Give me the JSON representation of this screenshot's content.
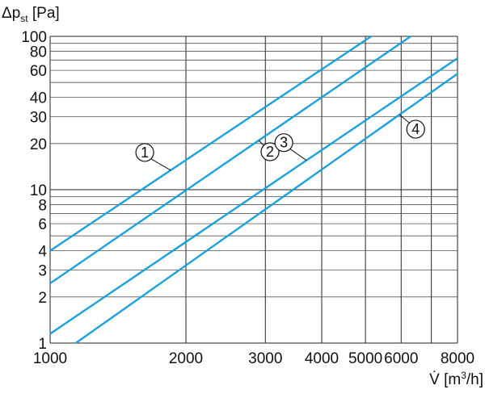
{
  "chart_data": {
    "type": "line",
    "xscale": "log",
    "yscale": "log",
    "xlim": [
      1000,
      8000
    ],
    "ylim": [
      1,
      100
    ],
    "grid": true,
    "xlabel": {
      "base": "V̇ [m",
      "sup": "3",
      "tail": "/h]"
    },
    "ylabel": {
      "base": "Δp",
      "sub": "st",
      "tail": " [Pa]"
    },
    "xticks": [
      1000,
      2000,
      3000,
      4000,
      5000,
      6000,
      8000
    ],
    "xtick_labels": [
      "1000",
      "2000",
      "3000",
      "4000",
      "5000",
      "6000",
      "8000"
    ],
    "xgrid": [
      1000,
      2000,
      3000,
      4000,
      5000,
      6000,
      7000,
      8000
    ],
    "yticks": [
      1,
      2,
      3,
      4,
      6,
      8,
      10,
      20,
      30,
      40,
      60,
      80,
      100
    ],
    "ytick_labels": [
      "1",
      "2",
      "3",
      "4",
      "6",
      "8",
      "10",
      "20",
      "30",
      "40",
      "60",
      "80",
      "100"
    ],
    "ygrid": [
      1,
      2,
      3,
      4,
      5,
      6,
      7,
      8,
      9,
      10,
      20,
      30,
      40,
      50,
      60,
      70,
      80,
      90,
      100
    ],
    "series": [
      {
        "label": "1",
        "points": [
          [
            1000,
            4
          ],
          [
            5150,
            100
          ]
        ],
        "label_at": [
          1850,
          12
        ],
        "marker": "circle-1"
      },
      {
        "label": "2",
        "points": [
          [
            1000,
            2.45
          ],
          [
            6300,
            100
          ]
        ],
        "label_at": [
          2900,
          15.5
        ],
        "marker": "circle-2"
      },
      {
        "label": "3",
        "points": [
          [
            1000,
            1.15
          ],
          [
            8000,
            72
          ]
        ],
        "label_at": [
          3700,
          16
        ],
        "marker": "circle-3"
      },
      {
        "label": "4",
        "points": [
          [
            1140,
            1
          ],
          [
            8000,
            57
          ]
        ],
        "label_at": [
          5950,
          14.5
        ],
        "marker": "circle-4"
      }
    ]
  }
}
